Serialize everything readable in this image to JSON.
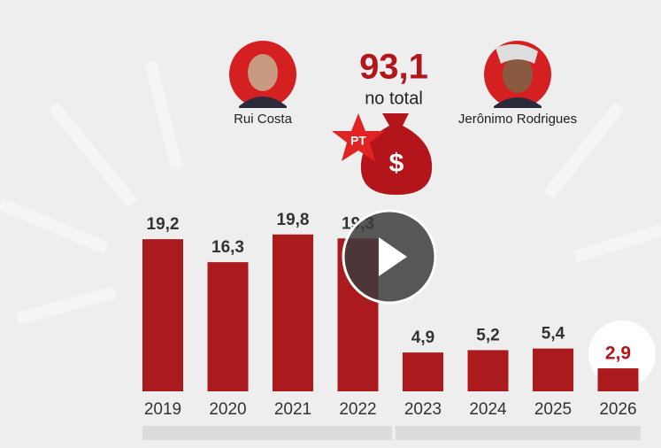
{
  "chart_data": {
    "type": "bar",
    "total_value_label": "93,1",
    "total_caption": "no total",
    "people": [
      "Rui Costa",
      "Jerônimo Rodrigues"
    ],
    "party_label": "PT",
    "currency_symbol": "$",
    "categories": [
      "2019",
      "2020",
      "2021",
      "2022",
      "2023",
      "2024",
      "2025",
      "2026"
    ],
    "values": [
      19.2,
      16.3,
      19.8,
      19.3,
      4.9,
      5.2,
      5.4,
      2.9
    ],
    "value_labels": [
      "19,2",
      "16,3",
      "19,8",
      "19,3",
      "4,9",
      "5,2",
      "5,4",
      "2,9"
    ],
    "color": "#ab1a1c"
  }
}
